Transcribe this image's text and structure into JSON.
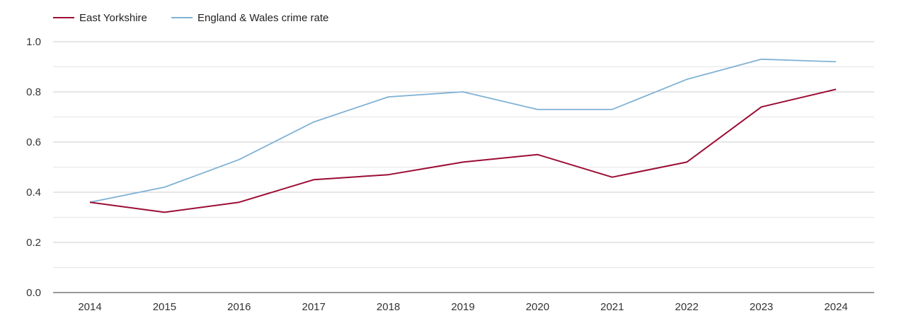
{
  "chart_data": {
    "type": "line",
    "title": "",
    "xlabel": "",
    "ylabel": "",
    "x": [
      "2014",
      "2015",
      "2016",
      "2017",
      "2018",
      "2019",
      "2020",
      "2021",
      "2022",
      "2023",
      "2024"
    ],
    "ylim": [
      0,
      1
    ],
    "yticks": [
      "0.0",
      "0.2",
      "0.4",
      "0.6",
      "0.8",
      "1.0"
    ],
    "grid": true,
    "legend_position": "top-left",
    "series": [
      {
        "name": "East Yorkshire",
        "color": "#9b0d34",
        "values": [
          0.36,
          0.32,
          0.36,
          0.45,
          0.47,
          0.52,
          0.55,
          0.46,
          0.52,
          0.74,
          0.81
        ]
      },
      {
        "name": "England & Wales crime rate",
        "color": "#7fb2d4",
        "values": [
          0.36,
          0.42,
          0.53,
          0.68,
          0.78,
          0.8,
          0.73,
          0.73,
          0.85,
          0.93,
          0.92
        ]
      }
    ]
  }
}
